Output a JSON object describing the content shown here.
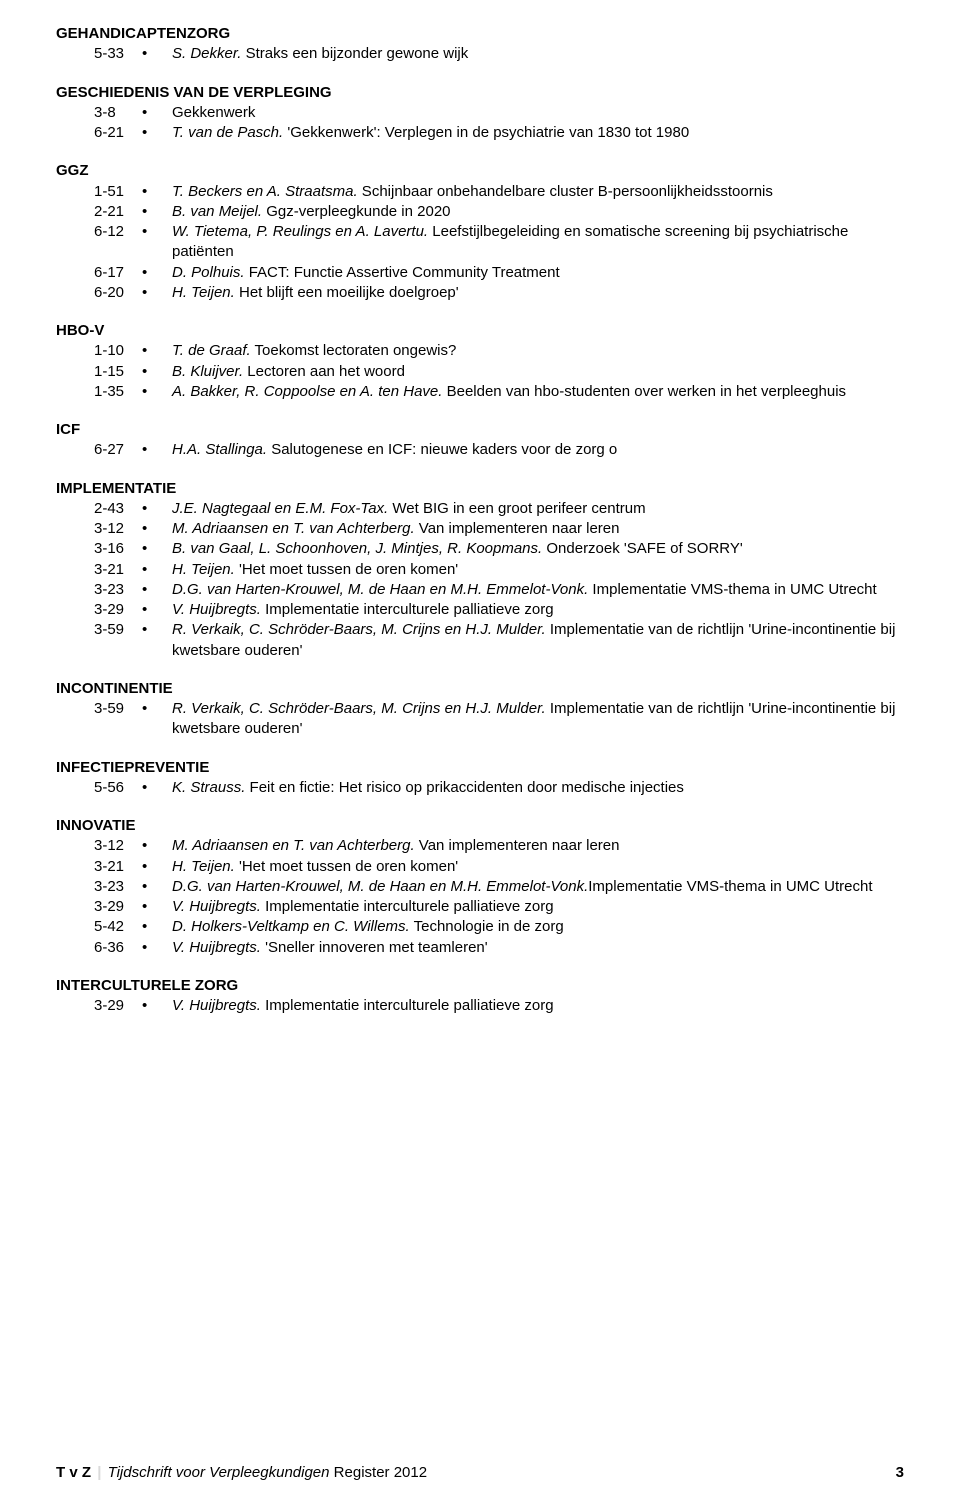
{
  "sections": [
    {
      "heading": "GEHANDICAPTENZORG",
      "entries": [
        {
          "ref": "5-33",
          "author": "S. Dekker.",
          "title": " Straks een bijzonder gewone wijk"
        }
      ]
    },
    {
      "heading": "GESCHIEDENIS VAN DE VERPLEGING",
      "entries": [
        {
          "ref": "3-8",
          "author": "",
          "title": "Gekkenwerk"
        },
        {
          "ref": "6-21",
          "author": "T. van de Pasch.",
          "title": " 'Gekkenwerk': Verplegen in de psychiatrie van 1830 tot 1980"
        }
      ]
    },
    {
      "heading": "GGZ",
      "entries": [
        {
          "ref": "1-51",
          "author": "T. Beckers en A. Straatsma.",
          "title": " Schijnbaar onbehandelbare cluster B-persoonlijkheidsstoornis"
        },
        {
          "ref": "2-21",
          "author": "B. van Meijel.",
          "title": " Ggz-verpleegkunde in 2020"
        },
        {
          "ref": "6-12",
          "author": "W. Tietema, P. Reulings en A. Lavertu.",
          "title": " Leefstijlbegeleiding en somatische screening bij psychiatrische patiënten"
        },
        {
          "ref": "6-17",
          "author": "D. Polhuis.",
          "title": " FACT: Functie Assertive Community Treatment"
        },
        {
          "ref": "6-20",
          "author": "H. Teijen.",
          "title": " Het blijft een moeilijke doelgroep'"
        }
      ]
    },
    {
      "heading": "HBO-V",
      "entries": [
        {
          "ref": "1-10",
          "author": "T. de Graaf.",
          "title": " Toekomst lectoraten ongewis?"
        },
        {
          "ref": "1-15",
          "author": "B. Kluijver.",
          "title": " Lectoren aan het woord"
        },
        {
          "ref": "1-35",
          "author": "A. Bakker, R. Coppoolse en A. ten Have.",
          "title": " Beelden van hbo-studenten over werken in het verpleeghuis"
        }
      ]
    },
    {
      "heading": "ICF",
      "entries": [
        {
          "ref": "6-27",
          "author": "H.A. Stallinga.",
          "title": " Salutogenese en ICF: nieuwe kaders voor de zorg o"
        }
      ]
    },
    {
      "heading": "IMPLEMENTATIE",
      "entries": [
        {
          "ref": "2-43",
          "author": "J.E. Nagtegaal en E.M. Fox-Tax.",
          "title": " Wet BIG in een groot perifeer centrum"
        },
        {
          "ref": "3-12",
          "author": "M. Adriaansen en T. van Achterberg.",
          "title": " Van implementeren naar leren"
        },
        {
          "ref": "3-16",
          "author": "B. van Gaal, L. Schoonhoven, J. Mintjes, R. Koopmans.",
          "title": " Onderzoek 'SAFE of SORRY'"
        },
        {
          "ref": "3-21",
          "author": "H. Teijen.",
          "title": " 'Het moet tussen de oren komen'"
        },
        {
          "ref": "3-23",
          "author": "D.G. van Harten-Krouwel, M. de Haan en M.H. Emmelot-Vonk.",
          "title": " Implementatie VMS-thema in UMC Utrecht"
        },
        {
          "ref": "3-29",
          "author": "V. Huijbregts.",
          "title": " Implementatie interculturele palliatieve zorg"
        },
        {
          "ref": "3-59",
          "author": "R. Verkaik, C. Schröder-Baars, M. Crijns en H.J. Mulder.",
          "title": " Implementatie van de richtlijn 'Urine-incontinentie bij kwetsbare ouderen'"
        }
      ]
    },
    {
      "heading": "INCONTINENTIE",
      "entries": [
        {
          "ref": "3-59",
          "author": "R. Verkaik, C. Schröder-Baars, M. Crijns en H.J. Mulder.",
          "title": " Implementatie van de richtlijn 'Urine-incontinentie bij kwetsbare ouderen'"
        }
      ]
    },
    {
      "heading": "INFECTIEPREVENTIE",
      "entries": [
        {
          "ref": "5-56",
          "author": "K. Strauss.",
          "title": " Feit en fictie: Het risico op prikaccidenten door medische injecties"
        }
      ]
    },
    {
      "heading": "INNOVATIE",
      "entries": [
        {
          "ref": "3-12",
          "author": "M. Adriaansen en T. van Achterberg.",
          "title": " Van implementeren naar leren"
        },
        {
          "ref": "3-21",
          "author": "H. Teijen.",
          "title": " 'Het moet tussen de oren komen'"
        },
        {
          "ref": "3-23",
          "author": "D.G. van Harten-Krouwel, M. de Haan en M.H. Emmelot-Vonk.",
          "title": "Implementatie VMS-thema in UMC Utrecht"
        },
        {
          "ref": "3-29",
          "author": "V. Huijbregts.",
          "title": " Implementatie interculturele palliatieve zorg"
        },
        {
          "ref": "5-42",
          "author": "D. Holkers-Veltkamp en C. Willems.",
          "title": " Technologie in de zorg"
        },
        {
          "ref": "6-36",
          "author": "V. Huijbregts.",
          "title": " 'Sneller innoveren met teamleren'"
        }
      ]
    },
    {
      "heading": "INTERCULTURELE ZORG",
      "entries": [
        {
          "ref": "3-29",
          "author": "V. Huijbregts.",
          "title": " Implementatie interculturele palliatieve zorg"
        }
      ]
    }
  ],
  "footer": {
    "brand": "T v Z",
    "sep": "|",
    "journal": "Tijdschrift voor Verpleegkundigen",
    "register": "Register 2012",
    "page": "3"
  }
}
